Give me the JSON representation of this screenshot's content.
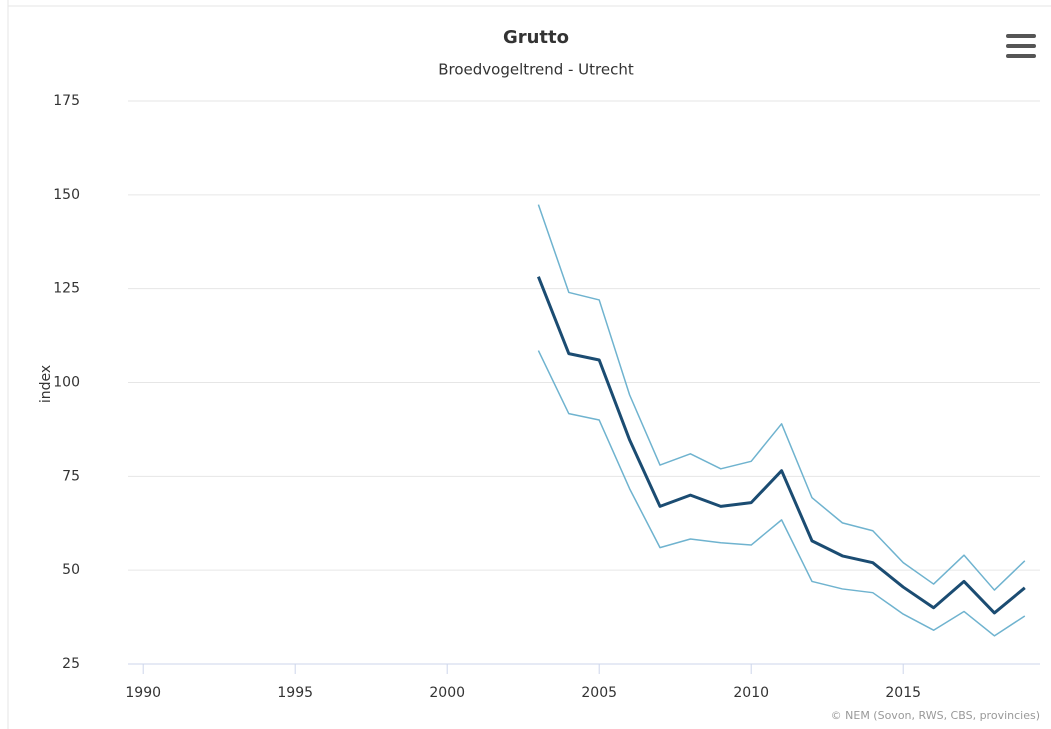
{
  "chart_data": {
    "type": "line",
    "title": "Grutto",
    "subtitle": "Broedvogeltrend - Utrecht",
    "y_label": "index",
    "credits": "© NEM (Sovon, RWS, CBS, provincies)",
    "x": [
      2003,
      2004,
      2005,
      2006,
      2007,
      2008,
      2009,
      2010,
      2011,
      2012,
      2013,
      2014,
      2015,
      2016,
      2017,
      2018,
      2019
    ],
    "series": [
      {
        "color": "#6fb3cf",
        "width": 1.5,
        "values": [
          147.4,
          124,
          122,
          96.7,
          78,
          81,
          77,
          79,
          89,
          69.3,
          62.6,
          60.5,
          52,
          46.3,
          54,
          44.7,
          52.5
        ]
      },
      {
        "color": "#6fb3cf",
        "width": 1.5,
        "values": [
          108.5,
          91.7,
          90,
          71.7,
          56,
          58.3,
          57.3,
          56.7,
          63.4,
          47,
          45,
          44,
          38.3,
          34,
          39,
          32.5,
          37.8
        ]
      },
      {
        "color": "#1b4c72",
        "width": 3,
        "values": [
          128.2,
          107.7,
          106,
          84.7,
          67,
          70,
          67,
          68,
          76.5,
          57.8,
          53.8,
          52,
          45.5,
          40,
          47,
          38.6,
          45.3
        ]
      }
    ],
    "xlim": [
      1989.5,
      2019.5
    ],
    "xticks": [
      1990,
      1995,
      2000,
      2005,
      2010,
      2015
    ],
    "ylim": [
      25,
      175
    ],
    "yticks": [
      25,
      50,
      75,
      100,
      125,
      150,
      175
    ],
    "grid": true
  }
}
